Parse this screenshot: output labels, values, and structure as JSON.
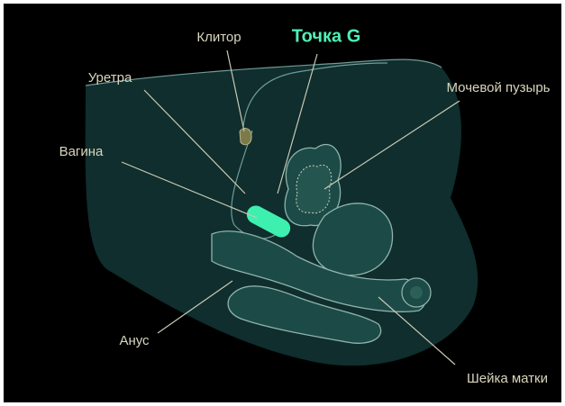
{
  "labels": [
    "Клитор",
    "Точка G",
    "Уретра",
    "Мочевой пузырь",
    "Вагина",
    "Анус",
    "Шейка матки"
  ]
}
